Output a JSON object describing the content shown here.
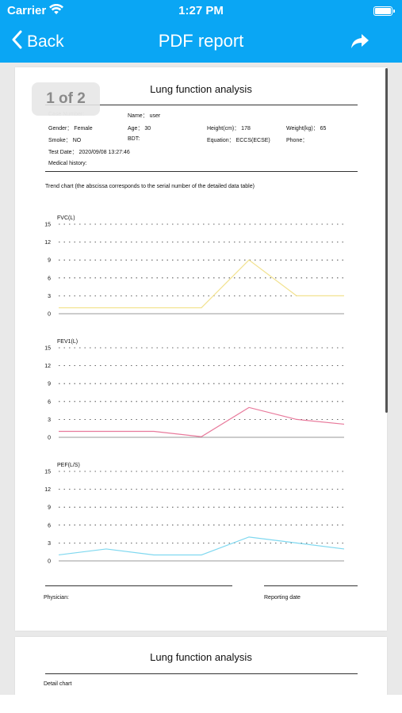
{
  "status_bar": {
    "carrier": "Carrier",
    "time": "1:27 PM"
  },
  "nav": {
    "back_label": "Back",
    "title": "PDF report"
  },
  "page_indicator": "1 of 2",
  "report": {
    "title": "Lung function analysis",
    "fields": {
      "case_number": "Case Number:",
      "name": "Name： user",
      "gender": "Gender： Female",
      "age": "Age： 30",
      "height": "Height(cm)： 178",
      "weight": "Weight(kg)： 65",
      "smoke": "Smoke： NO",
      "bdt": "BDT:",
      "equation": "Equation： ECCS(ECSE)",
      "phone": "Phone：",
      "test_date": "Test Date： 2020/09/08 13:27:46",
      "medical_history": "Medical history:"
    },
    "trend_caption": "Trend chart (the abscissa corresponds to the serial number of the detailed data table)",
    "physician_label": "Physician:",
    "reporting_date_label": "Reporting date"
  },
  "page2": {
    "title": "Lung function analysis",
    "detail_chart_label": "Detail chart"
  },
  "colors": {
    "nav_bg": "#0aa6f4",
    "fvc_line": "#f2e28f",
    "fev1_line": "#e8799b",
    "pef_line": "#7fd8f0"
  },
  "chart_data": [
    {
      "type": "line",
      "title": "FVC(L)",
      "yticks": [
        0,
        3,
        6,
        9,
        12,
        15
      ],
      "xticks": [
        "1",
        "3",
        "7"
      ],
      "ylim": [
        0,
        15
      ],
      "xlim": [
        1,
        7
      ],
      "x": [
        1,
        2,
        3,
        4,
        5,
        6,
        7
      ],
      "series": [
        {
          "values": [
            1.0,
            1.0,
            1.0,
            1.0,
            9.0,
            3.0,
            3.0
          ],
          "color": "#f2e28f"
        }
      ],
      "grid": "dotted horizontal"
    },
    {
      "type": "line",
      "title": "FEV1(L)",
      "yticks": [
        0,
        3,
        6,
        9,
        12,
        15
      ],
      "xticks": [
        "1",
        "3",
        "7"
      ],
      "ylim": [
        0,
        15
      ],
      "xlim": [
        1,
        7
      ],
      "x": [
        1,
        2,
        3,
        4,
        5,
        6,
        7
      ],
      "series": [
        {
          "values": [
            1.0,
            1.0,
            1.0,
            0.1,
            5.0,
            3.0,
            2.2
          ],
          "color": "#e8799b"
        }
      ],
      "grid": "dotted horizontal"
    },
    {
      "type": "line",
      "title": "PEF(L/S)",
      "yticks": [
        0,
        3,
        6,
        9,
        12,
        15
      ],
      "xticks": [
        "1",
        "3",
        "7"
      ],
      "ylim": [
        0,
        15
      ],
      "xlim": [
        1,
        7
      ],
      "x": [
        1,
        2,
        3,
        4,
        5,
        6,
        7
      ],
      "series": [
        {
          "values": [
            1.0,
            2.0,
            1.0,
            1.0,
            4.0,
            3.0,
            2.0
          ],
          "color": "#7fd8f0"
        }
      ],
      "grid": "dotted horizontal"
    }
  ]
}
